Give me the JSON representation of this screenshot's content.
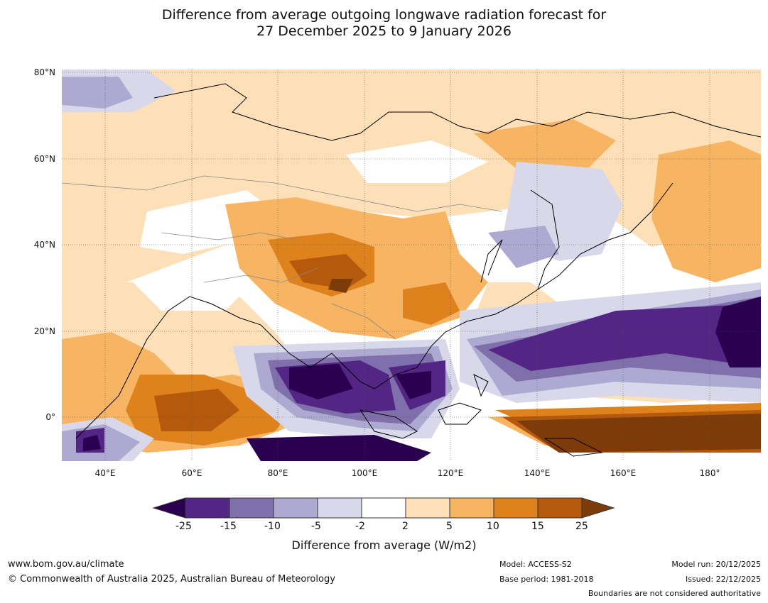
{
  "title": {
    "line1": "Difference from average outgoing longwave radiation forecast for",
    "line2": "27 December 2025 to 9 January 2026"
  },
  "map": {
    "lat_labels": [
      "80°N",
      "60°N",
      "40°N",
      "20°N",
      "0°"
    ],
    "lon_labels": [
      "40°E",
      "60°E",
      "80°E",
      "100°E",
      "120°E",
      "140°E",
      "160°E",
      "180°"
    ]
  },
  "colorbar": {
    "ticks": [
      "-25",
      "-15",
      "-10",
      "-5",
      "-2",
      "2",
      "5",
      "10",
      "15",
      "25"
    ],
    "title": "Difference from average (W/m2)",
    "colors": {
      "below": "#2a0050",
      "bins": [
        "#532585",
        "#7f6faa",
        "#aea9d0",
        "#d8d8ea",
        "#ffffff",
        "#fde0b7",
        "#f7b463",
        "#dd821d",
        "#b55a0c"
      ],
      "above": "#7e3b0a"
    }
  },
  "footer": {
    "url": "www.bom.gov.au/climate",
    "copyright": "© Commonwealth of Australia 2025, Australian Bureau of Meteorology",
    "model": "Model: ACCESS-S2",
    "base_period": "Base period: 1981-2018",
    "model_run": "Model run: 20/12/2025",
    "issued": "Issued: 22/12/2025",
    "disclaimer": "Boundaries are not considered authoritative"
  }
}
